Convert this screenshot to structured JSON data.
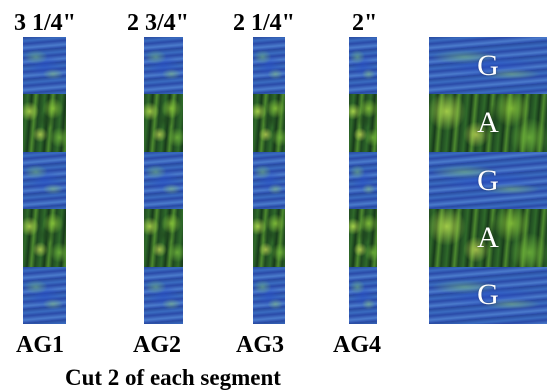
{
  "columns": [
    {
      "width_label": "3 1/4\"",
      "name": "AG1"
    },
    {
      "width_label": "2 3/4\"",
      "name": "AG2"
    },
    {
      "width_label": "2 1/4\"",
      "name": "AG3"
    },
    {
      "width_label": "2\"",
      "name": "AG4"
    }
  ],
  "assembled_letters": [
    "G",
    "A",
    "G",
    "A",
    "G"
  ],
  "caption": "Cut 2 of each segment",
  "colors": {
    "text": "#000000",
    "letter": "#ffffff",
    "water": "#2f53b0",
    "forest": "#245227"
  }
}
